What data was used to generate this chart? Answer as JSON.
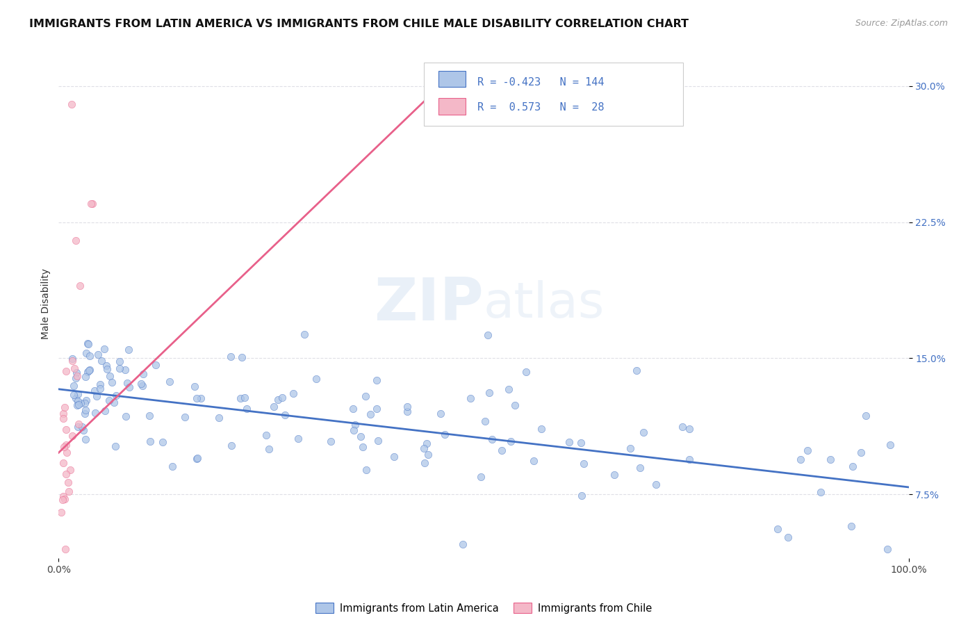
{
  "title": "IMMIGRANTS FROM LATIN AMERICA VS IMMIGRANTS FROM CHILE MALE DISABILITY CORRELATION CHART",
  "source": "Source: ZipAtlas.com",
  "ylabel": "Male Disability",
  "xlim": [
    0.0,
    1.0
  ],
  "ylim": [
    0.04,
    0.32
  ],
  "yticks": [
    0.075,
    0.15,
    0.225,
    0.3
  ],
  "ytick_labels": [
    "7.5%",
    "15.0%",
    "22.5%",
    "30.0%"
  ],
  "xticks": [
    0.0,
    1.0
  ],
  "xtick_labels": [
    "0.0%",
    "100.0%"
  ],
  "legend_label1": "Immigrants from Latin America",
  "legend_label2": "Immigrants from Chile",
  "r1": -0.423,
  "n1": 144,
  "r2": 0.573,
  "n2": 28,
  "color1": "#aec6e8",
  "color2": "#f4b8c8",
  "line_color1": "#4472c4",
  "line_color2": "#e8608a",
  "watermark": "ZIPatlas",
  "title_fontsize": 11.5,
  "tick_fontsize": 10,
  "background_color": "#ffffff",
  "grid_color": "#d8d8e0",
  "blue_line_x0": 0.0,
  "blue_line_y0": 0.133,
  "blue_line_x1": 1.0,
  "blue_line_y1": 0.079,
  "pink_line_x0": 0.0,
  "pink_line_y0": 0.098,
  "pink_line_x1": 0.46,
  "pink_line_y1": 0.305
}
